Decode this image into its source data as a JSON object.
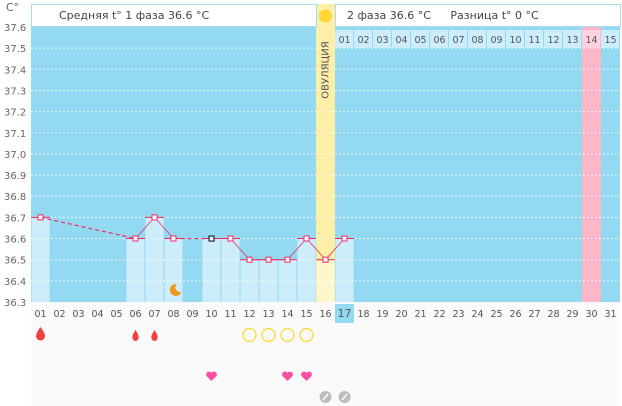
{
  "header": {
    "unit": "C°",
    "phase1": "Средняя t° 1 фаза 36.6 °C",
    "phase2": "2 фаза 36.6 °C",
    "difference": "Разница t° 0 °C",
    "ovulation": "ОВУЛЯЦИЯ"
  },
  "colors": {
    "bg": "#94d9f2",
    "bar": "#cdedfb",
    "line": "#ee2a63",
    "ovulation": "#fdeea8",
    "pink": "#ffb6c8",
    "today": "#94d9f2"
  },
  "chart_data": {
    "type": "line",
    "ylim": [
      36.3,
      37.6
    ],
    "yticks": [
      "37.6",
      "37.5",
      "37.4",
      "37.3",
      "37.2",
      "37.1",
      "37.0",
      "36.9",
      "36.8",
      "36.7",
      "36.6",
      "36.5",
      "36.4",
      "36.3"
    ],
    "x": [
      "01",
      "02",
      "03",
      "04",
      "05",
      "06",
      "07",
      "08",
      "09",
      "10",
      "11",
      "12",
      "13",
      "14",
      "15",
      "16",
      "17",
      "18",
      "19",
      "20",
      "21",
      "22",
      "23",
      "24",
      "25",
      "26",
      "27",
      "28",
      "29",
      "30",
      "31"
    ],
    "phase2_days": [
      "01",
      "02",
      "03",
      "04",
      "05",
      "06",
      "07",
      "08",
      "09",
      "10",
      "11",
      "12",
      "13",
      "14",
      "15"
    ],
    "highlight_phase2_day": "14",
    "ovulation_day": 16,
    "today_day": 17,
    "pink_day": 30,
    "temperatures": [
      {
        "day": 1,
        "value": 36.7
      },
      {
        "day": 6,
        "value": 36.6
      },
      {
        "day": 7,
        "value": 36.7
      },
      {
        "day": 8,
        "value": 36.6
      },
      {
        "day": 10,
        "value": 36.6
      },
      {
        "day": 11,
        "value": 36.6
      },
      {
        "day": 12,
        "value": 36.5
      },
      {
        "day": 13,
        "value": 36.5
      },
      {
        "day": 14,
        "value": 36.5
      },
      {
        "day": 15,
        "value": 36.6
      },
      {
        "day": 16,
        "value": 36.5
      },
      {
        "day": 17,
        "value": 36.6
      }
    ],
    "markers": {
      "moon": [
        8
      ],
      "blood_large": [
        1
      ],
      "blood_small": [
        6,
        7
      ],
      "circle": [
        12,
        13,
        14,
        15
      ],
      "heart": [
        10,
        14,
        15
      ],
      "pencil": [
        16,
        17
      ]
    }
  }
}
